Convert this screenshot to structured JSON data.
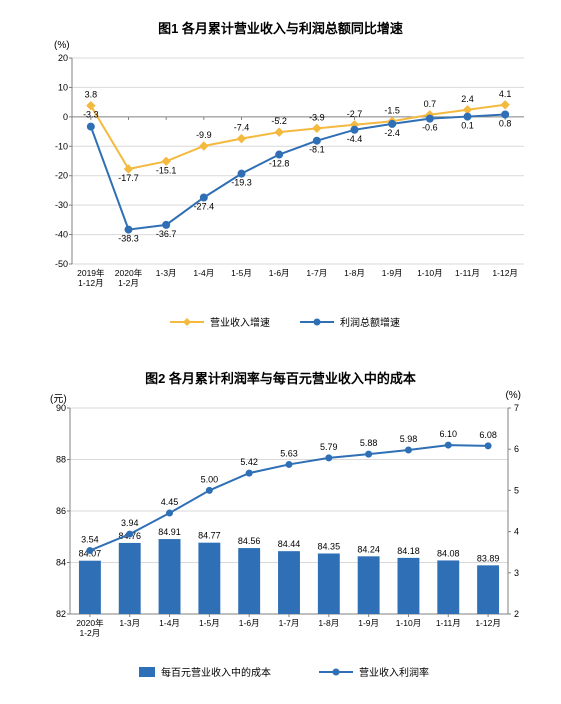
{
  "chart1": {
    "type": "line",
    "title": "图1  各月累计营业收入与利润总额同比增速",
    "title_fontsize": 13,
    "y_axis_label": "(%)",
    "categories": [
      "2019年\n1-12月",
      "2020年\n1-2月",
      "1-3月",
      "1-4月",
      "1-5月",
      "1-6月",
      "1-7月",
      "1-8月",
      "1-9月",
      "1-10月",
      "1-11月",
      "1-12月"
    ],
    "series": [
      {
        "name": "营业收入增速",
        "color": "#f4b93f",
        "marker": "diamond",
        "values": [
          3.8,
          -17.7,
          -15.1,
          -9.9,
          -7.4,
          -5.2,
          -3.9,
          -2.7,
          -1.5,
          0.7,
          2.4,
          4.1
        ],
        "label_dy": [
          -8,
          12,
          12,
          -8,
          -8,
          -8,
          -8,
          -8,
          -8,
          -8,
          -8,
          -8
        ]
      },
      {
        "name": "利润总额增速",
        "color": "#2f6fb5",
        "marker": "circle",
        "values": [
          -3.3,
          -38.3,
          -36.7,
          -27.4,
          -19.3,
          -12.8,
          -8.1,
          -4.4,
          -2.4,
          -0.6,
          0.1,
          0.8
        ],
        "label_dy": [
          -9,
          12,
          12,
          12,
          12,
          12,
          12,
          12,
          12,
          12,
          12,
          12
        ]
      }
    ],
    "ylim": [
      -50,
      20
    ],
    "ytick_step": 10,
    "grid_color": "#d9d9d9",
    "axis_color": "#808080",
    "background_color": "#ffffff",
    "tick_fontsize": 9,
    "label_fontsize": 9
  },
  "chart2": {
    "type": "bar+line",
    "title": "图2  各月累计利润率与每百元营业收入中的成本",
    "title_fontsize": 13,
    "left_axis_label": "(元)",
    "right_axis_label": "(%)",
    "categories": [
      "2020年\n1-2月",
      "1-3月",
      "1-4月",
      "1-5月",
      "1-6月",
      "1-7月",
      "1-8月",
      "1-9月",
      "1-10月",
      "1-11月",
      "1-12月"
    ],
    "bar_series": {
      "name": "每百元营业收入中的成本",
      "color": "#2f6fb5",
      "values": [
        84.07,
        84.76,
        84.91,
        84.77,
        84.56,
        84.44,
        84.35,
        84.24,
        84.18,
        84.08,
        83.89
      ]
    },
    "line_series": {
      "name": "营业收入利润率",
      "color": "#2f6fb5",
      "marker": "circle",
      "values": [
        3.54,
        3.94,
        4.45,
        5.0,
        5.42,
        5.63,
        5.79,
        5.88,
        5.98,
        6.1,
        6.08
      ]
    },
    "ylim_left": [
      82,
      90
    ],
    "ytick_step_left": 2,
    "ylim_right": [
      2,
      7
    ],
    "ytick_step_right": 1,
    "grid_color": "#d9d9d9",
    "axis_color": "#808080",
    "background_color": "#ffffff",
    "bar_width": 0.55,
    "tick_fontsize": 9,
    "label_fontsize": 9
  }
}
